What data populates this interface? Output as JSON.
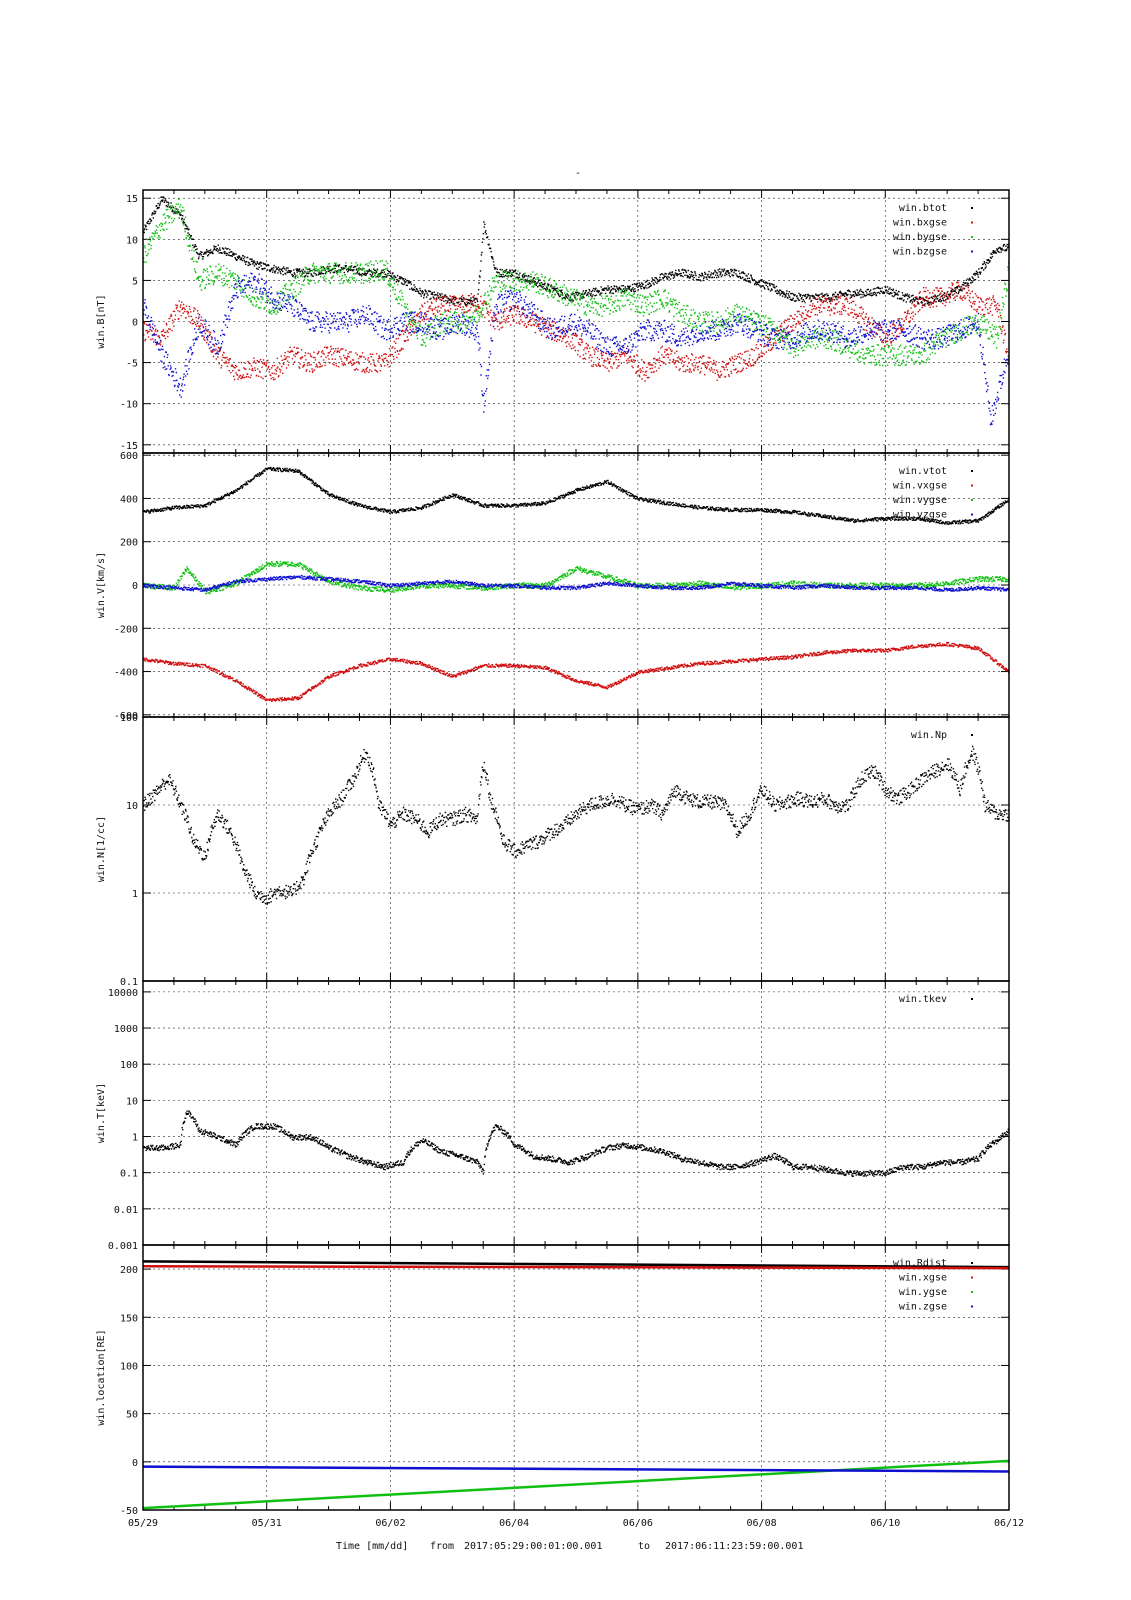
{
  "figure": {
    "title": "-",
    "footer": {
      "xlabel": "Time [mm/dd]",
      "from_label": "from",
      "start": "2017:05:29:00:01:00.001",
      "to_label": "to",
      "end": "2017:06:11:23:59:00.001"
    }
  },
  "chart_data": [
    {
      "type": "scatter",
      "ylabel": "win.B[nT]",
      "yscale": "linear",
      "ylim": [
        -16,
        16
      ],
      "yticks": [
        -15,
        -10,
        -5,
        0,
        5,
        10,
        15
      ],
      "ytick_labels": [
        "-15",
        "-10",
        "-5",
        "0",
        "5",
        "10",
        "15"
      ],
      "x_categories": [
        "05/29",
        "05/31",
        "06/02",
        "06/04",
        "06/06",
        "06/08",
        "06/10",
        "06/12"
      ],
      "xlim_days": [
        0,
        14
      ],
      "grid": true,
      "legend_position": "top-right",
      "series": [
        {
          "name": "win.btot",
          "color": "#000000",
          "noise": 0.5,
          "x": [
            0,
            0.3,
            0.6,
            0.9,
            1.2,
            1.5,
            1.8,
            2.1,
            2.4,
            2.7,
            3.0,
            3.3,
            3.6,
            3.9,
            4.2,
            4.5,
            4.8,
            5.1,
            5.4,
            5.5,
            5.7,
            6.0,
            6.3,
            6.6,
            6.9,
            7.2,
            7.5,
            7.8,
            8.1,
            8.4,
            8.7,
            9.0,
            9.3,
            9.6,
            9.9,
            10.2,
            10.5,
            10.8,
            11.1,
            11.4,
            11.7,
            12.0,
            12.3,
            12.6,
            12.9,
            13.2,
            13.5,
            13.8,
            14.0
          ],
          "y": [
            11,
            15,
            13,
            8,
            9,
            8,
            7,
            6.5,
            6,
            6,
            6.5,
            6.5,
            6,
            6,
            5,
            3.5,
            3,
            2.5,
            2.5,
            12,
            6,
            6,
            5,
            4,
            3,
            3.5,
            4,
            4,
            4.5,
            5.5,
            6,
            5.5,
            6,
            6,
            5,
            4,
            3,
            3,
            3,
            3.5,
            3.5,
            4,
            3,
            2.5,
            3,
            4,
            6,
            9,
            9
          ]
        },
        {
          "name": "win.bxgse",
          "color": "#d01010",
          "noise": 1.2,
          "x": [
            0,
            0.3,
            0.6,
            0.9,
            1.2,
            1.5,
            1.8,
            2.1,
            2.4,
            2.7,
            3.0,
            3.3,
            3.6,
            3.9,
            4.2,
            4.5,
            4.8,
            5.1,
            5.4,
            5.7,
            6.0,
            6.3,
            6.6,
            6.9,
            7.2,
            7.5,
            7.8,
            8.1,
            8.4,
            8.7,
            9.0,
            9.3,
            9.6,
            9.9,
            10.2,
            10.5,
            10.8,
            11.1,
            11.4,
            11.7,
            12.0,
            12.3,
            12.6,
            12.9,
            13.2,
            13.5,
            13.8,
            14.0
          ],
          "y": [
            -1,
            -2,
            2,
            0,
            -4,
            -6,
            -5.5,
            -6,
            -4,
            -5,
            -4,
            -4.5,
            -5,
            -5,
            -2,
            1,
            2,
            2,
            2.5,
            0,
            1,
            0,
            -1,
            -2,
            -4,
            -5,
            -4,
            -6,
            -4,
            -5,
            -5,
            -6,
            -5,
            -4,
            -2,
            0,
            2,
            2,
            2,
            0,
            -2,
            0,
            3,
            3,
            4,
            2,
            2,
            -5
          ]
        },
        {
          "name": "win.bygse",
          "color": "#10c010",
          "noise": 1.3,
          "x": [
            0,
            0.3,
            0.6,
            0.9,
            1.2,
            1.5,
            1.8,
            2.1,
            2.4,
            2.7,
            3.0,
            3.3,
            3.6,
            3.9,
            4.2,
            4.5,
            4.8,
            5.1,
            5.4,
            5.7,
            6.0,
            6.3,
            6.6,
            6.9,
            7.2,
            7.5,
            7.8,
            8.1,
            8.4,
            8.7,
            9.0,
            9.3,
            9.6,
            9.9,
            10.2,
            10.5,
            10.8,
            11.1,
            11.4,
            11.7,
            12.0,
            12.3,
            12.6,
            12.9,
            13.2,
            13.5,
            13.8,
            14.0
          ],
          "y": [
            8,
            12,
            14,
            5,
            6,
            5,
            3,
            2,
            4,
            6,
            6,
            6,
            6,
            6.5,
            2,
            -2,
            0,
            0,
            1,
            5,
            5,
            5,
            4,
            3,
            2,
            2,
            3,
            2,
            3,
            1,
            0,
            0,
            1,
            0,
            -1,
            -3,
            -2,
            -2,
            -3,
            -4,
            -4,
            -4,
            -4,
            -2,
            -1,
            0,
            -2,
            7
          ]
        },
        {
          "name": "win.bzgse",
          "color": "#1010d0",
          "noise": 1.3,
          "x": [
            0,
            0.3,
            0.6,
            0.9,
            1.2,
            1.5,
            1.8,
            2.1,
            2.4,
            2.7,
            3.0,
            3.3,
            3.6,
            3.9,
            4.2,
            4.5,
            4.8,
            5.1,
            5.4,
            5.5,
            5.7,
            6.0,
            6.3,
            6.6,
            6.9,
            7.2,
            7.5,
            7.8,
            8.1,
            8.4,
            8.7,
            9.0,
            9.3,
            9.6,
            9.9,
            10.2,
            10.5,
            10.8,
            11.1,
            11.4,
            11.7,
            12.0,
            12.3,
            12.6,
            12.9,
            13.2,
            13.5,
            13.7,
            14.0
          ],
          "y": [
            2,
            -4,
            -8,
            0,
            -3,
            4,
            5,
            3,
            2,
            0,
            0,
            0,
            1,
            -1,
            0,
            0,
            -1,
            0,
            -1,
            -10,
            2,
            3,
            1,
            -1,
            0,
            -1,
            -3,
            -3,
            -1,
            -1,
            -2,
            -1,
            -1,
            0,
            -1,
            -2,
            -2,
            -1,
            -1,
            -2,
            -1,
            -1,
            -1,
            -2,
            -2,
            -1,
            0,
            -12,
            -3
          ]
        }
      ]
    },
    {
      "type": "scatter",
      "ylabel": "win.V[km/s]",
      "yscale": "linear",
      "ylim": [
        -610,
        610
      ],
      "yticks": [
        -600,
        -400,
        -200,
        0,
        200,
        400,
        600
      ],
      "ytick_labels": [
        "-600",
        "-400",
        "-200",
        "0",
        "200",
        "400",
        "600"
      ],
      "grid": true,
      "legend_position": "top-right",
      "series": [
        {
          "name": "win.vtot",
          "color": "#000000",
          "noise": 8,
          "x": [
            0,
            0.5,
            1.0,
            1.5,
            2.0,
            2.5,
            3.0,
            3.5,
            4.0,
            4.5,
            5.0,
            5.5,
            6.0,
            6.5,
            7.0,
            7.5,
            8.0,
            8.5,
            9.0,
            9.5,
            10.0,
            10.5,
            11.0,
            11.5,
            12.0,
            12.5,
            13.0,
            13.5,
            14.0
          ],
          "y": [
            340,
            360,
            370,
            440,
            540,
            530,
            420,
            370,
            340,
            360,
            420,
            370,
            370,
            380,
            440,
            480,
            400,
            380,
            360,
            350,
            350,
            340,
            320,
            300,
            310,
            310,
            290,
            300,
            400
          ]
        },
        {
          "name": "win.vxgse",
          "color": "#d01010",
          "noise": 8,
          "x": [
            0,
            0.5,
            1.0,
            1.5,
            2.0,
            2.5,
            3.0,
            3.5,
            4.0,
            4.5,
            5.0,
            5.5,
            6.0,
            6.5,
            7.0,
            7.5,
            8.0,
            8.5,
            9.0,
            9.5,
            10.0,
            10.5,
            11.0,
            11.5,
            12.0,
            12.5,
            13.0,
            13.5,
            14.0
          ],
          "y": [
            -340,
            -360,
            -370,
            -440,
            -530,
            -520,
            -420,
            -370,
            -340,
            -360,
            -420,
            -370,
            -370,
            -380,
            -440,
            -470,
            -400,
            -380,
            -360,
            -350,
            -340,
            -330,
            -310,
            -300,
            -300,
            -280,
            -270,
            -290,
            -400
          ]
        },
        {
          "name": "win.vygse",
          "color": "#10c010",
          "noise": 12,
          "x": [
            0,
            0.5,
            0.7,
            1.0,
            1.5,
            2.0,
            2.5,
            3.0,
            3.5,
            4.0,
            4.5,
            5.0,
            5.5,
            6.0,
            6.5,
            7.0,
            7.5,
            8.0,
            8.5,
            9.0,
            9.5,
            10.0,
            10.5,
            11.0,
            11.5,
            12.0,
            12.5,
            13.0,
            13.5,
            14.0
          ],
          "y": [
            0,
            -10,
            80,
            -30,
            10,
            100,
            100,
            20,
            -10,
            -20,
            0,
            0,
            -10,
            0,
            0,
            80,
            40,
            0,
            0,
            10,
            -10,
            0,
            10,
            0,
            0,
            0,
            0,
            10,
            30,
            30
          ]
        },
        {
          "name": "win.vzgse",
          "color": "#1010d0",
          "noise": 8,
          "x": [
            0,
            0.5,
            1.0,
            1.5,
            2.0,
            2.5,
            3.0,
            3.5,
            4.0,
            4.5,
            5.0,
            5.5,
            6.0,
            6.5,
            7.0,
            7.5,
            8.0,
            8.5,
            9.0,
            9.5,
            10.0,
            10.5,
            11.0,
            11.5,
            12.0,
            12.5,
            13.0,
            13.5,
            14.0
          ],
          "y": [
            0,
            -10,
            -20,
            20,
            30,
            40,
            30,
            20,
            0,
            10,
            20,
            0,
            0,
            -10,
            -10,
            10,
            0,
            -10,
            -10,
            10,
            0,
            -10,
            0,
            -10,
            -10,
            -10,
            -20,
            -10,
            -20
          ]
        }
      ]
    },
    {
      "type": "scatter",
      "ylabel": "win.N[1/cc]",
      "yscale": "log",
      "ylim": [
        0.1,
        100
      ],
      "yticks": [
        0.1,
        1,
        10,
        100
      ],
      "ytick_labels": [
        "0.1",
        "1",
        "10",
        "100"
      ],
      "grid": true,
      "legend_position": "top-right",
      "series": [
        {
          "name": "win.Np",
          "color": "#000000",
          "noise": 0.08,
          "x": [
            0,
            0.2,
            0.4,
            0.6,
            0.8,
            1.0,
            1.2,
            1.4,
            1.6,
            1.8,
            2.0,
            2.2,
            2.4,
            2.6,
            2.8,
            3.0,
            3.2,
            3.4,
            3.6,
            3.8,
            4.0,
            4.2,
            4.4,
            4.6,
            4.8,
            5.0,
            5.2,
            5.4,
            5.5,
            5.6,
            5.8,
            6.0,
            6.2,
            6.4,
            6.6,
            6.8,
            7.0,
            7.2,
            7.4,
            7.6,
            7.8,
            8.0,
            8.2,
            8.4,
            8.6,
            8.8,
            9.0,
            9.2,
            9.4,
            9.6,
            9.8,
            10.0,
            10.2,
            10.4,
            10.6,
            10.8,
            11.0,
            11.2,
            11.4,
            11.6,
            11.8,
            12.0,
            12.2,
            12.4,
            12.6,
            12.8,
            13.0,
            13.2,
            13.4,
            13.6,
            13.8,
            14.0
          ],
          "y": [
            10,
            14,
            20,
            10,
            4,
            2.5,
            8,
            5,
            2,
            1,
            0.9,
            1.1,
            1.0,
            1.5,
            4,
            8,
            12,
            20,
            40,
            10,
            6,
            8,
            7,
            5,
            7,
            7,
            8,
            7,
            30,
            12,
            4,
            3,
            3.5,
            4,
            5,
            6,
            8,
            10,
            11,
            12,
            10,
            9,
            10,
            8,
            15,
            12,
            11,
            11,
            10,
            5,
            8,
            15,
            10,
            11,
            12,
            11,
            12,
            10,
            10,
            20,
            25,
            15,
            12,
            15,
            20,
            25,
            30,
            15,
            40,
            10,
            8,
            8
          ]
        }
      ]
    },
    {
      "type": "scatter",
      "ylabel": "win.T[keV]",
      "yscale": "log",
      "ylim": [
        0.001,
        20000
      ],
      "yticks": [
        0.001,
        0.01,
        0.1,
        1,
        10,
        100,
        1000,
        10000
      ],
      "ytick_labels": [
        "0.001",
        "0.01",
        "0.1",
        "1",
        "10",
        "100",
        "1000",
        "10000"
      ],
      "grid": true,
      "legend_position": "top-right",
      "series": [
        {
          "name": "win.tkev",
          "color": "#000000",
          "noise": 0.08,
          "x": [
            0,
            0.3,
            0.6,
            0.7,
            0.9,
            1.2,
            1.5,
            1.8,
            2.1,
            2.4,
            2.7,
            3.0,
            3.3,
            3.6,
            3.9,
            4.2,
            4.5,
            4.8,
            5.1,
            5.4,
            5.5,
            5.7,
            6.0,
            6.3,
            6.6,
            6.9,
            7.2,
            7.5,
            7.8,
            8.1,
            8.4,
            8.7,
            9.0,
            9.3,
            9.6,
            9.9,
            10.2,
            10.5,
            10.8,
            11.1,
            11.4,
            11.7,
            12.0,
            12.3,
            12.6,
            12.9,
            13.2,
            13.5,
            13.8,
            14.0
          ],
          "y": [
            0.5,
            0.5,
            0.6,
            5,
            1.5,
            1.0,
            0.6,
            2,
            2,
            1,
            1,
            0.5,
            0.3,
            0.2,
            0.15,
            0.2,
            0.8,
            0.4,
            0.3,
            0.2,
            0.1,
            2,
            0.6,
            0.3,
            0.25,
            0.2,
            0.3,
            0.5,
            0.6,
            0.5,
            0.4,
            0.25,
            0.2,
            0.15,
            0.15,
            0.2,
            0.3,
            0.15,
            0.15,
            0.12,
            0.1,
            0.1,
            0.1,
            0.15,
            0.15,
            0.2,
            0.2,
            0.25,
            0.8,
            1.5
          ]
        }
      ]
    },
    {
      "type": "line",
      "ylabel": "win.location[RE]",
      "yscale": "linear",
      "ylim": [
        -50,
        225
      ],
      "yticks": [
        -50,
        0,
        50,
        100,
        150,
        200
      ],
      "ytick_labels": [
        "-50",
        "0",
        "50",
        "100",
        "150",
        "200"
      ],
      "grid": true,
      "legend_position": "top-right",
      "series": [
        {
          "name": "win.Rdist",
          "color": "#000000",
          "x": [
            0,
            14
          ],
          "y": [
            208,
            202
          ]
        },
        {
          "name": "win.xgse",
          "color": "#d01010",
          "x": [
            0,
            14
          ],
          "y": [
            203,
            201
          ]
        },
        {
          "name": "win.ygse",
          "color": "#10c010",
          "x": [
            0,
            14
          ],
          "y": [
            -48,
            1
          ]
        },
        {
          "name": "win.zgse",
          "color": "#1010d0",
          "x": [
            0,
            14
          ],
          "y": [
            -5,
            -10
          ]
        }
      ]
    }
  ]
}
